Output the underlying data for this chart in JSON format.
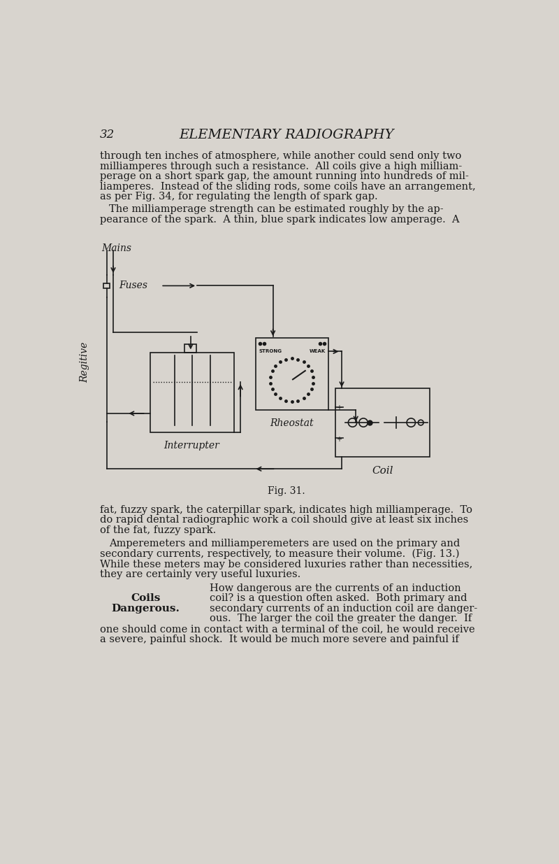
{
  "bg_color": "#d8d4ce",
  "page_number": "32",
  "title": "ELEMENTARY RADIOGRAPHY",
  "body_text_1": "through ten inches of atmosphere, while another could send only two\nmilliamperes through such a resistance.  All coils give a high milliam-\nperage on a short spark gap, the amount running into hundreds of mil-\nliamperes.  Instead of the sliding rods, some coils have an arrangement,\nas per Fig. 34, for regulating the length of spark gap.",
  "body_text_2": "The milliamperage strength can be estimated roughly by the ap-\npearance of the spark.  A thin, blue spark indicates low amperage.  A",
  "body_text_3": "fat, fuzzy spark, the caterpillar spark, indicates high milliamperage.  To\ndo rapid dental radiographic work a coil should give at least six inches\nof the fat, fuzzy spark.",
  "body_text_4": "Amperemeters and milliamperemeters are used on the primary and\nsecondary currents, respectively, to measure their volume.  (Fig. 13.)\nWhile these meters may be considered luxuries rather than necessities,\nthey are certainly very useful luxuries.",
  "body_text_5": "How dangerous are the currents of an induction\ncoil? is a question often asked.  Both primary and\nsecondary currents of an induction coil are danger-\nous.  The larger the coil the greater the danger.  If\none should come in contact with a terminal of the coil, he would receive\na severe, painful shock.  It would be much more severe and painful if",
  "sidebar_label1": "Coils",
  "sidebar_label2": "Dangerous.",
  "fig_caption": "Fig. 31.",
  "text_color": "#1a1a1a",
  "diagram": {
    "mains_label": "Mains",
    "fuses_label": "Fuses",
    "regitive_label": "Regitive",
    "interrupter_label": "Interrupter",
    "rheostat_label": "Rheostat",
    "coil_label": "Coil",
    "strong_label": "STRONG",
    "weak_label": "WEAK"
  }
}
